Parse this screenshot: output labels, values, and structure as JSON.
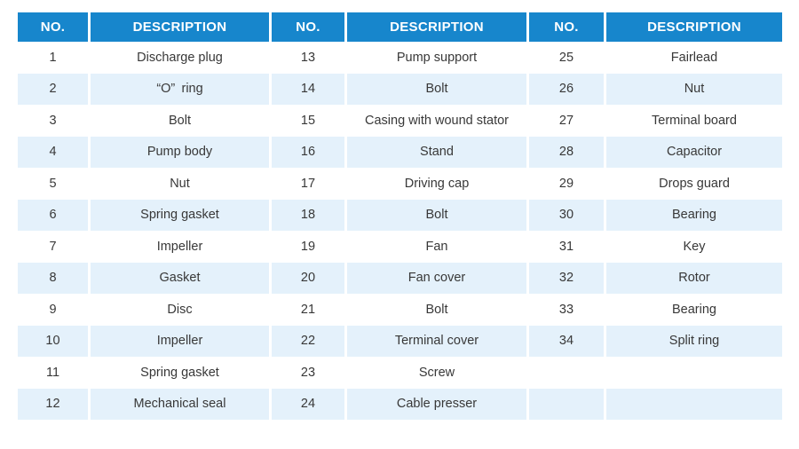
{
  "table": {
    "columns": [
      "NO.",
      "DESCRIPTION",
      "NO.",
      "DESCRIPTION",
      "NO.",
      "DESCRIPTION"
    ],
    "rows": [
      [
        "1",
        "Discharge plug",
        "13",
        "Pump support",
        "25",
        "Fairlead"
      ],
      [
        "2",
        "“O” ring",
        "14",
        "Bolt",
        "26",
        "Nut"
      ],
      [
        "3",
        "Bolt",
        "15",
        "Casing with wound stator",
        "27",
        "Terminal board"
      ],
      [
        "4",
        "Pump body",
        "16",
        "Stand",
        "28",
        "Capacitor"
      ],
      [
        "5",
        "Nut",
        "17",
        "Driving cap",
        "29",
        "Drops guard"
      ],
      [
        "6",
        "Spring gasket",
        "18",
        "Bolt",
        "30",
        "Bearing"
      ],
      [
        "7",
        "Impeller",
        "19",
        "Fan",
        "31",
        "Key"
      ],
      [
        "8",
        "Gasket",
        "20",
        "Fan cover",
        "32",
        "Rotor"
      ],
      [
        "9",
        "Disc",
        "21",
        "Bolt",
        "33",
        "Bearing"
      ],
      [
        "10",
        "Impeller",
        "22",
        "Terminal cover",
        "34",
        "Split ring"
      ],
      [
        "11",
        "Spring gasket",
        "23",
        "Screw",
        "",
        ""
      ],
      [
        "12",
        "Mechanical seal",
        "24",
        "Cable presser",
        "",
        ""
      ]
    ]
  },
  "colors": {
    "page_bg": "#ffffff",
    "header_bg": "#1786cc",
    "header_text": "#ffffff",
    "row_even_bg": "#ffffff",
    "row_odd_bg": "#e4f1fb",
    "body_text": "#383838",
    "cell_gap": "#ffffff"
  }
}
